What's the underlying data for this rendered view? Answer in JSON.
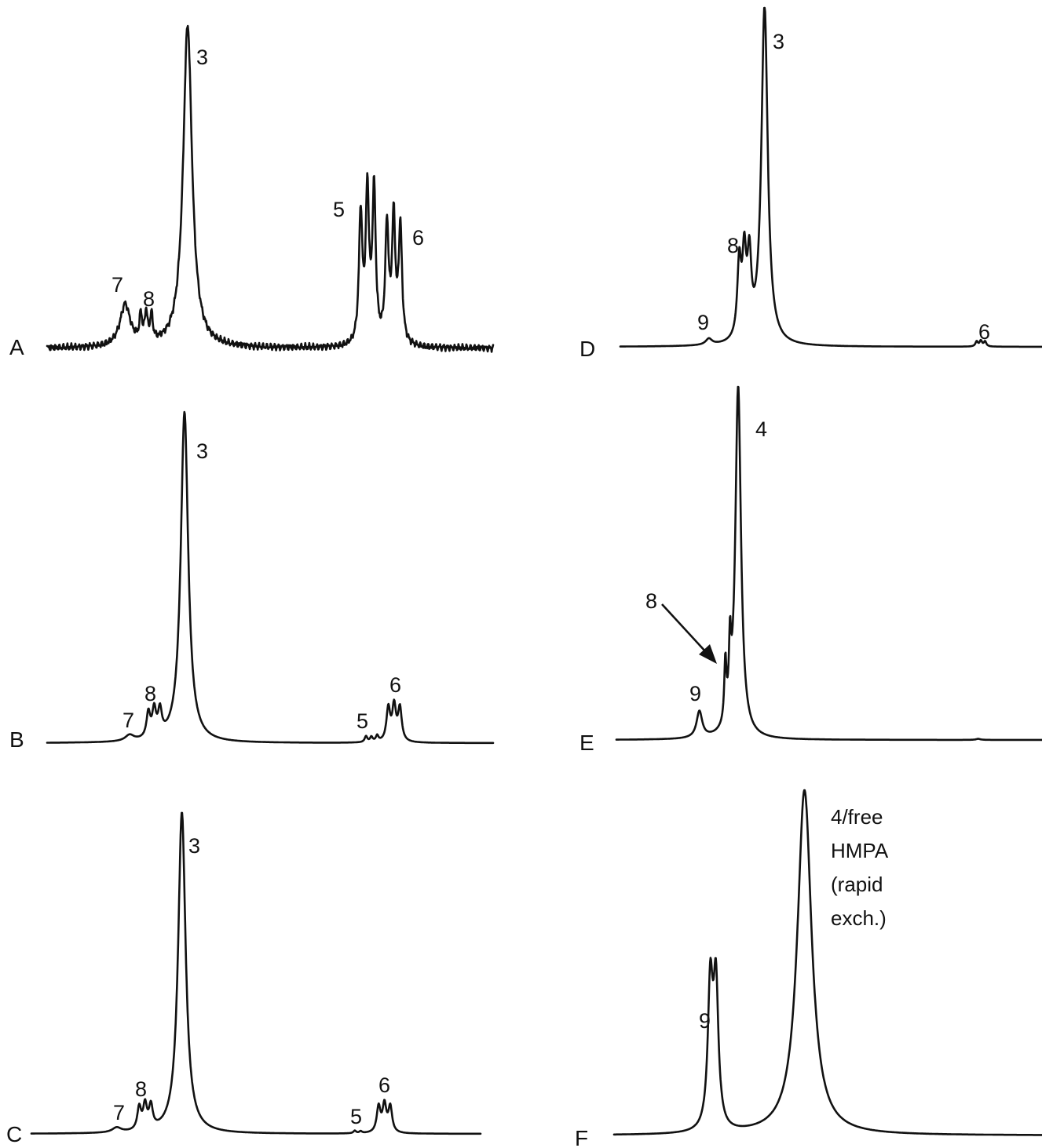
{
  "chart_data": [
    {
      "type": "line",
      "panel": "A",
      "title": "",
      "xlabel": "",
      "ylabel": "",
      "grid": false,
      "x_range": [
        0,
        100
      ],
      "y_range": [
        0,
        100
      ],
      "noise": 0.6,
      "series": [
        {
          "values": [
            {
              "x": 17.5,
              "y": 13,
              "w": 1.4,
              "label": "7"
            },
            {
              "x": 21.0,
              "y": 8,
              "w": 0.35,
              "label": "8"
            },
            {
              "x": 22.2,
              "y": 9,
              "w": 0.35
            },
            {
              "x": 23.4,
              "y": 8,
              "w": 0.35
            },
            {
              "x": 31.5,
              "y": 100,
              "w": 1.2,
              "label": "3"
            },
            {
              "x": 70.3,
              "y": 40,
              "w": 0.45,
              "label": "5"
            },
            {
              "x": 71.8,
              "y": 46,
              "w": 0.45
            },
            {
              "x": 73.3,
              "y": 47,
              "w": 0.45
            },
            {
              "x": 76.2,
              "y": 36,
              "w": 0.45
            },
            {
              "x": 77.7,
              "y": 38,
              "w": 0.45
            },
            {
              "x": 79.2,
              "y": 36,
              "w": 0.45,
              "label": "6"
            }
          ]
        }
      ]
    },
    {
      "type": "line",
      "panel": "B",
      "title": "",
      "xlabel": "",
      "ylabel": "",
      "grid": false,
      "x_range": [
        0,
        100
      ],
      "y_range": [
        0,
        100
      ],
      "noise": 0,
      "series": [
        {
          "values": [
            {
              "x": 18.5,
              "y": 1.8,
              "w": 1.2,
              "label": "7"
            },
            {
              "x": 22.7,
              "y": 7.5,
              "w": 0.5,
              "label": "8"
            },
            {
              "x": 24.0,
              "y": 8.0,
              "w": 0.5
            },
            {
              "x": 25.3,
              "y": 7.5,
              "w": 0.5
            },
            {
              "x": 30.8,
              "y": 100,
              "w": 1.0,
              "label": "3"
            },
            {
              "x": 71.5,
              "y": 1.8,
              "w": 0.35,
              "label": "5"
            },
            {
              "x": 72.7,
              "y": 1.5,
              "w": 0.35
            },
            {
              "x": 74.0,
              "y": 1.8,
              "w": 0.35
            },
            {
              "x": 76.5,
              "y": 10,
              "w": 0.5,
              "label": "6"
            },
            {
              "x": 77.8,
              "y": 10.5,
              "w": 0.5
            },
            {
              "x": 79.1,
              "y": 10,
              "w": 0.5
            }
          ]
        }
      ]
    },
    {
      "type": "line",
      "panel": "C",
      "title": "",
      "xlabel": "",
      "ylabel": "",
      "grid": false,
      "x_range": [
        0,
        100
      ],
      "y_range": [
        0,
        100
      ],
      "noise": 0,
      "series": [
        {
          "values": [
            {
              "x": 19.0,
              "y": 1.5,
              "w": 1.2,
              "label": "7"
            },
            {
              "x": 24.0,
              "y": 7.0,
              "w": 0.5,
              "label": "8"
            },
            {
              "x": 25.3,
              "y": 7.5,
              "w": 0.5
            },
            {
              "x": 26.6,
              "y": 7.0,
              "w": 0.5
            },
            {
              "x": 33.5,
              "y": 100,
              "w": 1.0,
              "label": "3"
            },
            {
              "x": 72.0,
              "y": 0.8,
              "w": 0.35,
              "label": "5"
            },
            {
              "x": 73.3,
              "y": 0.6,
              "w": 0.35
            },
            {
              "x": 77.3,
              "y": 8.0,
              "w": 0.5,
              "label": "6"
            },
            {
              "x": 78.6,
              "y": 8.5,
              "w": 0.5
            },
            {
              "x": 79.9,
              "y": 8.0,
              "w": 0.5
            }
          ]
        }
      ]
    },
    {
      "type": "line",
      "panel": "D",
      "title": "",
      "xlabel": "",
      "ylabel": "",
      "grid": false,
      "x_range": [
        0,
        100
      ],
      "y_range": [
        0,
        100
      ],
      "noise": 0,
      "series": [
        {
          "values": [
            {
              "x": 21.0,
              "y": 1.8,
              "w": 0.9,
              "label": "9"
            },
            {
              "x": 28.2,
              "y": 22,
              "w": 0.55,
              "label": "8"
            },
            {
              "x": 29.4,
              "y": 23,
              "w": 0.55
            },
            {
              "x": 30.6,
              "y": 22,
              "w": 0.55
            },
            {
              "x": 34.2,
              "y": 100,
              "w": 0.9,
              "label": "3"
            },
            {
              "x": 84.5,
              "y": 1.5,
              "w": 0.35,
              "label": "6"
            },
            {
              "x": 85.5,
              "y": 1.7,
              "w": 0.35
            },
            {
              "x": 86.5,
              "y": 1.5,
              "w": 0.35
            }
          ]
        }
      ]
    },
    {
      "type": "line",
      "panel": "E",
      "title": "",
      "xlabel": "",
      "ylabel": "",
      "grid": false,
      "x_range": [
        0,
        100
      ],
      "y_range": [
        0,
        100
      ],
      "noise": 0,
      "series": [
        {
          "values": [
            {
              "x": 19.5,
              "y": 7.5,
              "w": 0.8,
              "label": "9"
            },
            {
              "x": 25.6,
              "y": 17,
              "w": 0.3,
              "label": "8"
            },
            {
              "x": 26.7,
              "y": 19,
              "w": 0.3
            },
            {
              "x": 28.6,
              "y": 100,
              "w": 0.8,
              "label": "4"
            },
            {
              "x": 85.0,
              "y": 0.3,
              "w": 0.6
            }
          ]
        }
      ]
    },
    {
      "type": "line",
      "panel": "F",
      "title": "",
      "xlabel": "",
      "ylabel": "",
      "grid": false,
      "x_range": [
        0,
        100
      ],
      "y_range": [
        0,
        100
      ],
      "noise": 0,
      "series": [
        {
          "values": [
            {
              "x": 22.5,
              "y": 41,
              "w": 0.7,
              "label": "9"
            },
            {
              "x": 23.8,
              "y": 41,
              "w": 0.7
            },
            {
              "x": 44.5,
              "y": 100,
              "w": 2.0,
              "label": "4/free HMPA (rapid exch.)"
            }
          ]
        }
      ]
    }
  ],
  "panel_labels": [
    "A",
    "B",
    "C",
    "D",
    "E",
    "F"
  ],
  "peak_labels": {
    "A": [
      "7",
      "8",
      "3",
      "5",
      "6"
    ],
    "B": [
      "7",
      "8",
      "3",
      "5",
      "6"
    ],
    "C": [
      "7",
      "8",
      "3",
      "5",
      "6"
    ],
    "D": [
      "9",
      "8",
      "3",
      "6"
    ],
    "E": [
      "9",
      "8",
      "4"
    ],
    "F": [
      "9"
    ]
  },
  "annotation_F": [
    "4/free",
    "HMPA",
    "(rapid",
    "exch.)"
  ],
  "colors": {
    "trace": "#111111",
    "background": "#ffffff"
  }
}
